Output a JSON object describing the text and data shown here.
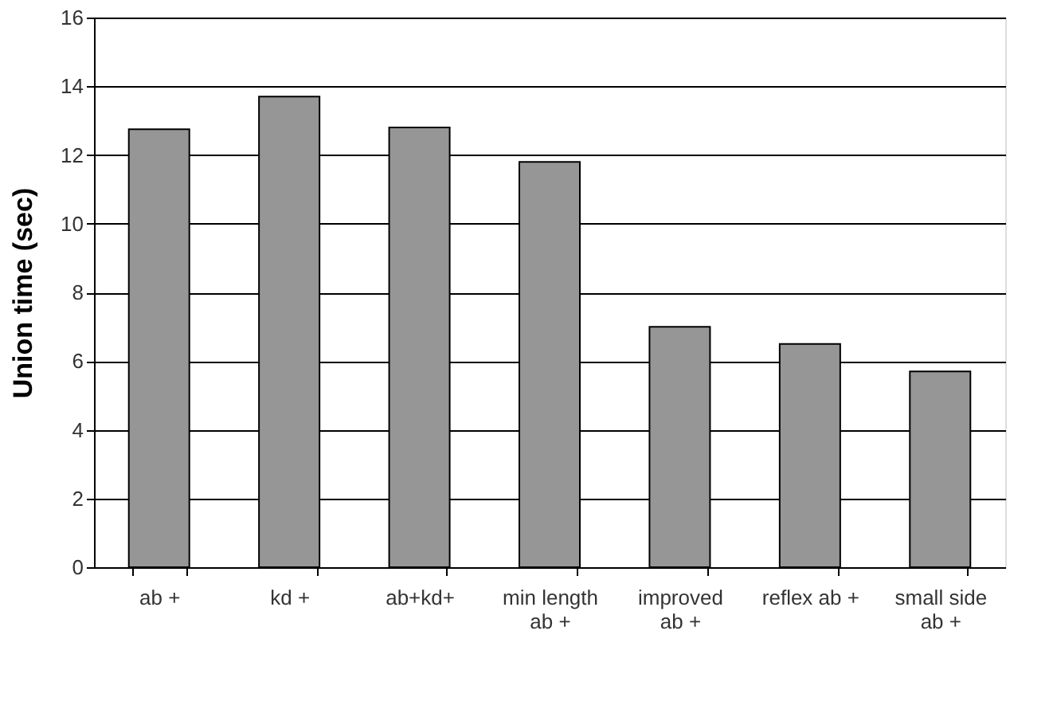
{
  "chart_data": {
    "type": "bar",
    "ylabel": "Union time (sec)",
    "categories": [
      "ab +",
      "kd +",
      "ab+kd+",
      "min length\nab +",
      "improved\nab +",
      "reflex ab +",
      "small side\nab +"
    ],
    "values": [
      12.75,
      13.7,
      12.8,
      11.8,
      7.0,
      6.5,
      5.7
    ],
    "color": "#969696",
    "ylim": [
      0,
      16
    ],
    "yticks": [
      0,
      2,
      4,
      6,
      8,
      10,
      12,
      14,
      16
    ],
    "grid": "y"
  }
}
